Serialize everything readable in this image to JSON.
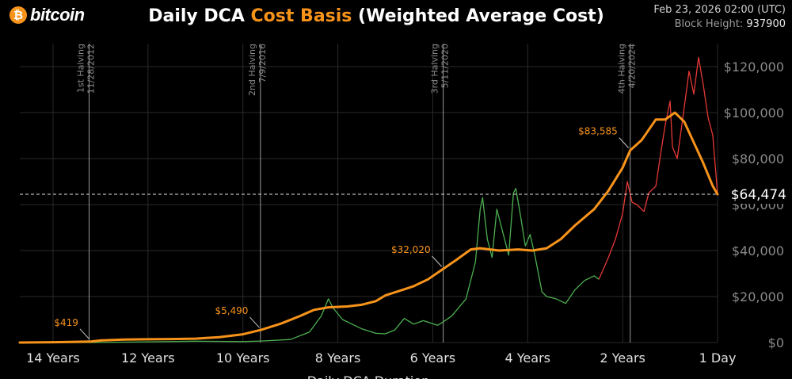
{
  "logo": {
    "symbol": "₿",
    "text": "bitcoin"
  },
  "header": {
    "title_prefix": "Daily DCA ",
    "title_accent": "Cost Basis",
    "title_suffix": " (Weighted Average Cost)",
    "date": "Feb 23, 2026 02:00 (UTC)",
    "block_height_label": "Block Height:",
    "block_height_value": "937900"
  },
  "colors": {
    "accent": "#f7931a",
    "up": "#4caf50",
    "down": "#e53935",
    "grid": "#2a2a2a"
  },
  "chart_data": {
    "type": "line",
    "title": "Daily DCA Cost Basis (Weighted Average Cost)",
    "xlabel": "Daily DCA Duration",
    "ylabel": "",
    "x_reversed": true,
    "xlim": [
      14.7,
      0
    ],
    "ylim": [
      0,
      130000
    ],
    "x_ticks": [
      14,
      12,
      10,
      8,
      6,
      4,
      2,
      0
    ],
    "x_tick_labels": [
      "14 Years",
      "12 Years",
      "10 Years",
      "8 Years",
      "6 Years",
      "4 Years",
      "2 Years",
      "1 Day"
    ],
    "y_ticks": [
      0,
      20000,
      40000,
      60000,
      80000,
      100000,
      120000
    ],
    "y_tick_labels": [
      "$0",
      "$20,000",
      "$40,000",
      "$60,000",
      "$80,000",
      "$100,000",
      "$120,000"
    ],
    "current_value": 64474,
    "current_label": "$64,474",
    "halvings": [
      {
        "x": 13.24,
        "name": "1st Halving",
        "date": "11/28/2012"
      },
      {
        "x": 9.63,
        "name": "2nd Halving",
        "date": "7/9/2016"
      },
      {
        "x": 5.78,
        "name": "3rd Halving",
        "date": "5/11/2020"
      },
      {
        "x": 1.84,
        "name": "4th Halving",
        "date": "4/20/2024"
      }
    ],
    "annotations": [
      {
        "x": 13.2,
        "y": 419,
        "label": "$419"
      },
      {
        "x": 9.62,
        "y": 5490,
        "label": "$5,490"
      },
      {
        "x": 5.78,
        "y": 32020,
        "label": "$32,020"
      },
      {
        "x": 1.84,
        "y": 83585,
        "label": "$83,585"
      }
    ],
    "series": [
      {
        "name": "Cost Basis",
        "color": "#f7931a",
        "points": [
          [
            14.7,
            0
          ],
          [
            14,
            150
          ],
          [
            13.5,
            300
          ],
          [
            13.2,
            419
          ],
          [
            13,
            900
          ],
          [
            12.5,
            1300
          ],
          [
            12,
            1400
          ],
          [
            11.5,
            1500
          ],
          [
            11,
            1700
          ],
          [
            10.5,
            2300
          ],
          [
            10,
            3600
          ],
          [
            9.62,
            5490
          ],
          [
            9.2,
            8200
          ],
          [
            8.8,
            11500
          ],
          [
            8.5,
            14200
          ],
          [
            8.2,
            15300
          ],
          [
            7.8,
            15700
          ],
          [
            7.5,
            16400
          ],
          [
            7.2,
            18000
          ],
          [
            7,
            20500
          ],
          [
            6.7,
            22500
          ],
          [
            6.4,
            24500
          ],
          [
            6.1,
            27500
          ],
          [
            5.78,
            32020
          ],
          [
            5.5,
            36000
          ],
          [
            5.2,
            40500
          ],
          [
            5,
            41000
          ],
          [
            4.6,
            40000
          ],
          [
            4.2,
            40500
          ],
          [
            3.9,
            40000
          ],
          [
            3.6,
            41000
          ],
          [
            3.3,
            45000
          ],
          [
            3,
            51000
          ],
          [
            2.6,
            58000
          ],
          [
            2.3,
            66000
          ],
          [
            2,
            76000
          ],
          [
            1.84,
            83585
          ],
          [
            1.6,
            88000
          ],
          [
            1.3,
            97000
          ],
          [
            1.1,
            97000
          ],
          [
            0.9,
            100000
          ],
          [
            0.7,
            96000
          ],
          [
            0.5,
            87000
          ],
          [
            0.3,
            78000
          ],
          [
            0.1,
            68000
          ],
          [
            0,
            64474
          ]
        ]
      },
      {
        "name": "Price (above cost basis)",
        "color": "#4caf50",
        "points": [
          [
            14.7,
            10
          ],
          [
            13.2,
            13
          ],
          [
            12,
            300
          ],
          [
            11,
            600
          ],
          [
            10,
            420
          ],
          [
            9.62,
            650
          ],
          [
            9,
            1300
          ],
          [
            8.6,
            4500
          ],
          [
            8.35,
            11500
          ],
          [
            8.2,
            19000
          ],
          [
            8.1,
            15000
          ],
          [
            7.9,
            10000
          ],
          [
            7.7,
            8000
          ],
          [
            7.5,
            6000
          ],
          [
            7.2,
            4000
          ],
          [
            7,
            3800
          ],
          [
            6.8,
            5500
          ],
          [
            6.6,
            10500
          ],
          [
            6.4,
            8000
          ],
          [
            6.2,
            9500
          ],
          [
            5.9,
            7500
          ],
          [
            5.78,
            9000
          ],
          [
            5.6,
            11500
          ],
          [
            5.3,
            19000
          ],
          [
            5.1,
            35000
          ],
          [
            5,
            58000
          ],
          [
            4.95,
            63000
          ],
          [
            4.85,
            45000
          ],
          [
            4.75,
            37000
          ],
          [
            4.65,
            58000
          ],
          [
            4.55,
            50000
          ],
          [
            4.4,
            38000
          ],
          [
            4.3,
            65000
          ],
          [
            4.25,
            67000
          ],
          [
            4.15,
            55000
          ],
          [
            4.05,
            42000
          ],
          [
            3.95,
            47000
          ],
          [
            3.85,
            38000
          ],
          [
            3.7,
            22000
          ],
          [
            3.6,
            20000
          ],
          [
            3.4,
            19000
          ],
          [
            3.2,
            17000
          ],
          [
            3,
            23000
          ],
          [
            2.8,
            27000
          ],
          [
            2.6,
            29000
          ],
          [
            2.5,
            27500
          ]
        ]
      },
      {
        "name": "Price (below cost basis)",
        "color": "#e53935",
        "points": [
          [
            2.5,
            27500
          ],
          [
            2.3,
            37000
          ],
          [
            2.15,
            45000
          ],
          [
            2,
            56000
          ],
          [
            1.9,
            70000
          ],
          [
            1.8,
            61000
          ],
          [
            1.7,
            60000
          ],
          [
            1.55,
            57000
          ],
          [
            1.45,
            65000
          ],
          [
            1.3,
            68000
          ],
          [
            1.2,
            82000
          ],
          [
            1.1,
            95000
          ],
          [
            1,
            105000
          ],
          [
            0.95,
            85000
          ],
          [
            0.85,
            80000
          ],
          [
            0.75,
            95000
          ],
          [
            0.6,
            118000
          ],
          [
            0.5,
            108000
          ],
          [
            0.4,
            124000
          ],
          [
            0.3,
            112000
          ],
          [
            0.2,
            98000
          ],
          [
            0.1,
            90000
          ],
          [
            0,
            64474
          ]
        ]
      }
    ]
  }
}
